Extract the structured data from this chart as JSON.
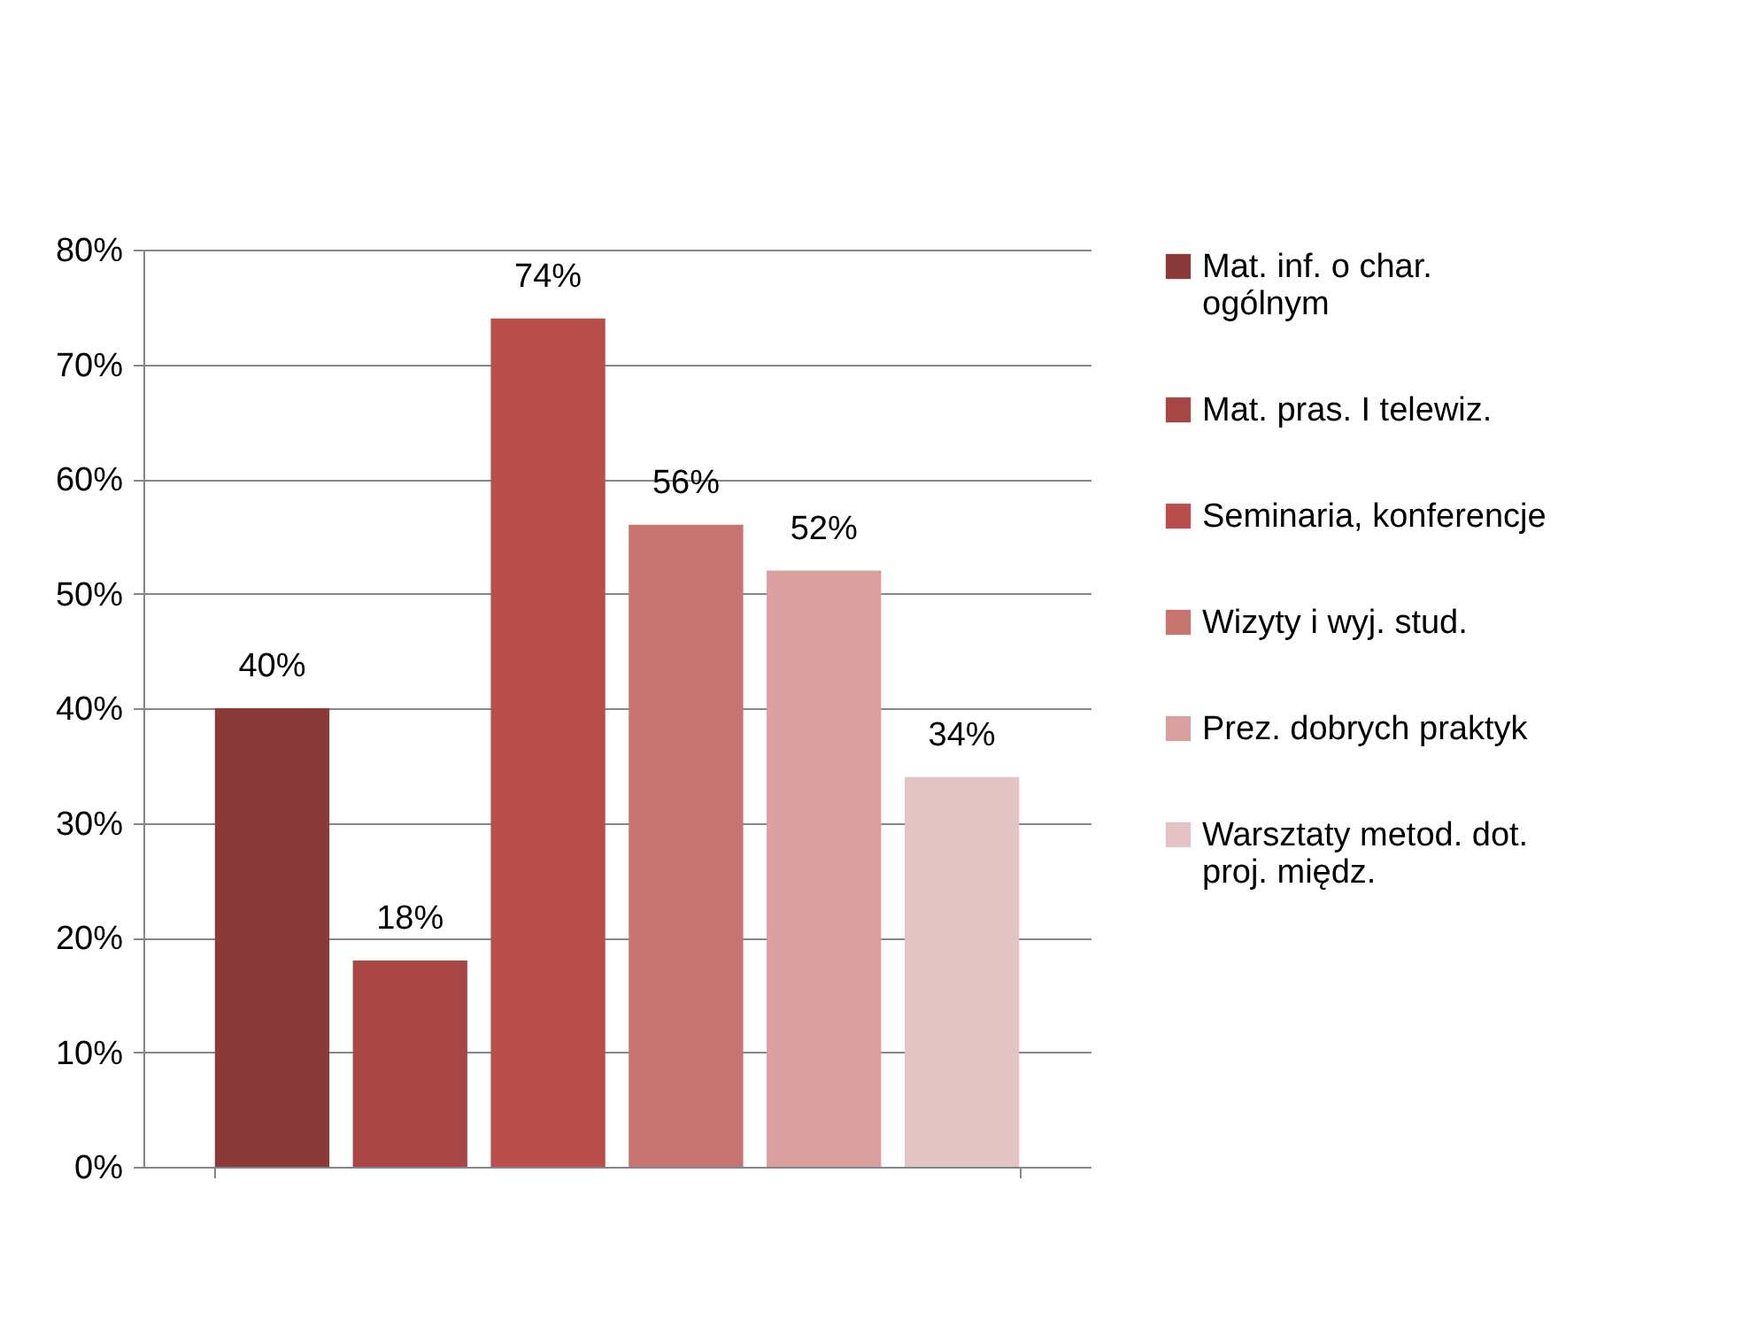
{
  "chart_data": {
    "type": "bar",
    "categories": [
      null
    ],
    "series": [
      {
        "name": "Mat. inf.  o char. ogólnym",
        "color": "#8b3a3a",
        "values": [
          40
        ],
        "value_labels": [
          "40%"
        ]
      },
      {
        "name": "Mat. pras. I telewiz.",
        "color": "#a84545",
        "values": [
          18
        ],
        "value_labels": [
          "18%"
        ]
      },
      {
        "name": "Seminaria, konferencje",
        "color": "#b94e4c",
        "values": [
          74
        ],
        "value_labels": [
          "74%"
        ]
      },
      {
        "name": "Wizyty i wyj. stud.",
        "color": "#c87471",
        "values": [
          56
        ],
        "value_labels": [
          "56%"
        ]
      },
      {
        "name": "Prez. dobrych praktyk",
        "color": "#d9a09f",
        "values": [
          52
        ],
        "value_labels": [
          "52%"
        ]
      },
      {
        "name": "Warsztaty metod. dot. proj. międz.",
        "color": "#e3c3c3",
        "values": [
          34
        ],
        "value_labels": [
          "34%"
        ]
      }
    ],
    "ylim": [
      0,
      80
    ],
    "yticks": [
      {
        "value": 0,
        "label": "0%"
      },
      {
        "value": 10,
        "label": "10%"
      },
      {
        "value": 20,
        "label": "20%"
      },
      {
        "value": 30,
        "label": "30%"
      },
      {
        "value": 40,
        "label": "40%"
      },
      {
        "value": 50,
        "label": "50%"
      },
      {
        "value": 60,
        "label": "60%"
      },
      {
        "value": 70,
        "label": "70%"
      },
      {
        "value": 80,
        "label": "80%"
      }
    ],
    "grid": "y",
    "legend": "right"
  }
}
